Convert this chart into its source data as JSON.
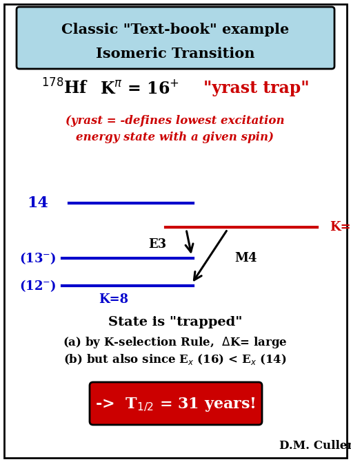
{
  "title_line1": "Classic \"Text-book\" example",
  "title_line2": "Isomeric Transition",
  "title_bg": "#add8e6",
  "title_border": "#000000",
  "blue_color": "#0000cc",
  "red_color": "#cc0000",
  "black_color": "#000000",
  "bottom_box_bg": "#cc0000",
  "author": "D.M. Cullen",
  "fig_width": 5.09,
  "fig_height": 6.71,
  "dpi": 100
}
